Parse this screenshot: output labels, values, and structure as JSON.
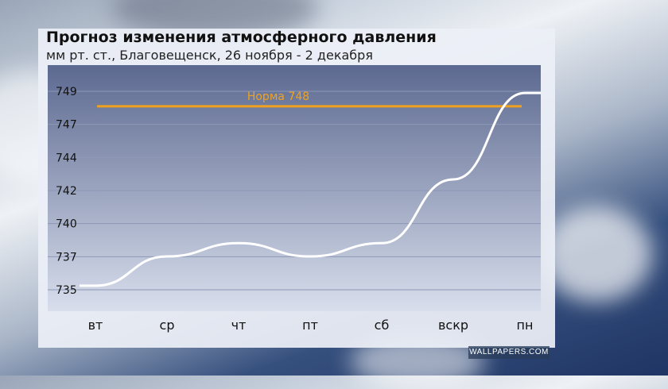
{
  "chart_data": {
    "type": "line",
    "title": "Прогноз изменения атмосферного давления",
    "subtitle": "мм рт. ст., Благовещенск, 26 ноября - 2 декабря",
    "categories": [
      "вт",
      "ср",
      "чт",
      "пт",
      "сб",
      "вскр",
      "пн"
    ],
    "y_tick_labels": [
      "735",
      "737",
      "740",
      "742",
      "744",
      "747",
      "749"
    ],
    "values": [
      735,
      737.2,
      738.2,
      737.2,
      738.2,
      743,
      749.5
    ],
    "ylim": [
      733.2,
      751.6
    ],
    "reference_line": {
      "label": "Норма 748",
      "value": 748.5
    },
    "grid": true,
    "legend": "none"
  },
  "colors": {
    "line": "#ffffff",
    "reference": "#f0a21e",
    "plot_top": "#5c6990",
    "plot_bottom": "#d8deec",
    "grid": "#8d98b6"
  },
  "watermark": "WALLPAPERS.COM"
}
